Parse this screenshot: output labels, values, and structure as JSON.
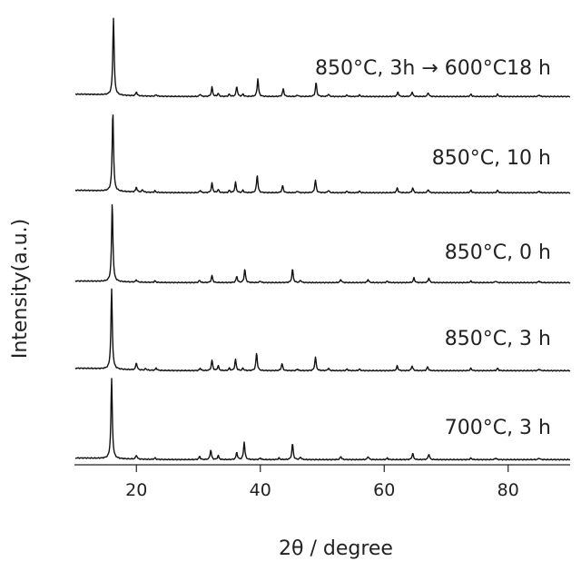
{
  "chart_data": {
    "type": "line",
    "title": "",
    "xlabel": "2θ / degree",
    "ylabel": "Intensity(a.u.)",
    "xlim": [
      10,
      90
    ],
    "xticks": [
      20,
      40,
      60,
      80
    ],
    "grid": false,
    "legend": "none",
    "y_offset_stacked": true,
    "series": [
      {
        "name": "850°C, 3h → 600°C18 h",
        "baseline": 3,
        "peaks": [
          [
            16.3,
            100
          ],
          [
            20.0,
            5
          ],
          [
            23.2,
            2
          ],
          [
            30.3,
            3
          ],
          [
            32.2,
            12
          ],
          [
            33.2,
            4
          ],
          [
            35.0,
            3
          ],
          [
            36.2,
            13
          ],
          [
            37.2,
            3
          ],
          [
            39.6,
            23
          ],
          [
            43.7,
            10
          ],
          [
            46.0,
            2
          ],
          [
            49.0,
            18
          ],
          [
            51.0,
            3
          ],
          [
            54.0,
            2
          ],
          [
            56.0,
            2
          ],
          [
            62.2,
            6
          ],
          [
            64.5,
            6
          ],
          [
            67.1,
            5
          ],
          [
            74.0,
            3
          ],
          [
            78.3,
            3
          ],
          [
            85.0,
            2
          ]
        ]
      },
      {
        "name": "850°C, 10 h",
        "baseline": 3,
        "peaks": [
          [
            16.2,
            100
          ],
          [
            20.0,
            6
          ],
          [
            21.0,
            3
          ],
          [
            23.0,
            2
          ],
          [
            30.3,
            3
          ],
          [
            32.2,
            12
          ],
          [
            33.2,
            4
          ],
          [
            35.0,
            3
          ],
          [
            36.0,
            13
          ],
          [
            37.2,
            3
          ],
          [
            39.5,
            22
          ],
          [
            43.6,
            9
          ],
          [
            46.0,
            2
          ],
          [
            48.9,
            16
          ],
          [
            51.0,
            3
          ],
          [
            54.0,
            2
          ],
          [
            56.0,
            2
          ],
          [
            62.1,
            6
          ],
          [
            64.6,
            6
          ],
          [
            67.1,
            4
          ],
          [
            74.0,
            3
          ],
          [
            78.3,
            3
          ],
          [
            85.0,
            2
          ]
        ]
      },
      {
        "name": "850°C, 0 h",
        "baseline": 2,
        "peaks": [
          [
            16.1,
            100
          ],
          [
            20.0,
            3
          ],
          [
            23.0,
            2
          ],
          [
            30.2,
            3
          ],
          [
            32.2,
            9
          ],
          [
            36.2,
            8
          ],
          [
            37.5,
            17
          ],
          [
            40.0,
            2
          ],
          [
            45.2,
            17
          ],
          [
            46.5,
            3
          ],
          [
            53.0,
            4
          ],
          [
            57.4,
            4
          ],
          [
            60.5,
            2
          ],
          [
            64.8,
            6
          ],
          [
            67.2,
            6
          ],
          [
            74.0,
            2
          ],
          [
            78.0,
            2
          ],
          [
            85.0,
            2
          ]
        ]
      },
      {
        "name": "850°C, 3 h",
        "baseline": 3,
        "peaks": [
          [
            16.0,
            100
          ],
          [
            20.0,
            9
          ],
          [
            21.5,
            2
          ],
          [
            23.2,
            3
          ],
          [
            30.3,
            3
          ],
          [
            32.2,
            13
          ],
          [
            33.2,
            6
          ],
          [
            35.0,
            3
          ],
          [
            36.0,
            14
          ],
          [
            37.2,
            3
          ],
          [
            39.4,
            22
          ],
          [
            43.5,
            9
          ],
          [
            46.0,
            2
          ],
          [
            48.9,
            17
          ],
          [
            51.0,
            3
          ],
          [
            54.0,
            2
          ],
          [
            56.0,
            2
          ],
          [
            62.1,
            6
          ],
          [
            64.5,
            6
          ],
          [
            67.0,
            5
          ],
          [
            74.0,
            3
          ],
          [
            78.3,
            3
          ],
          [
            85.0,
            2
          ]
        ]
      },
      {
        "name": "700°C, 3 h",
        "baseline": 2,
        "peaks": [
          [
            16.0,
            100
          ],
          [
            20.0,
            5
          ],
          [
            23.0,
            2
          ],
          [
            30.2,
            4
          ],
          [
            32.0,
            12
          ],
          [
            33.2,
            5
          ],
          [
            36.2,
            9
          ],
          [
            37.4,
            22
          ],
          [
            40.0,
            2
          ],
          [
            43.0,
            2
          ],
          [
            45.2,
            20
          ],
          [
            46.5,
            3
          ],
          [
            53.0,
            4
          ],
          [
            57.4,
            4
          ],
          [
            60.5,
            2
          ],
          [
            64.6,
            8
          ],
          [
            67.2,
            7
          ],
          [
            74.0,
            2
          ],
          [
            78.0,
            2
          ],
          [
            85.0,
            2
          ]
        ]
      }
    ]
  }
}
